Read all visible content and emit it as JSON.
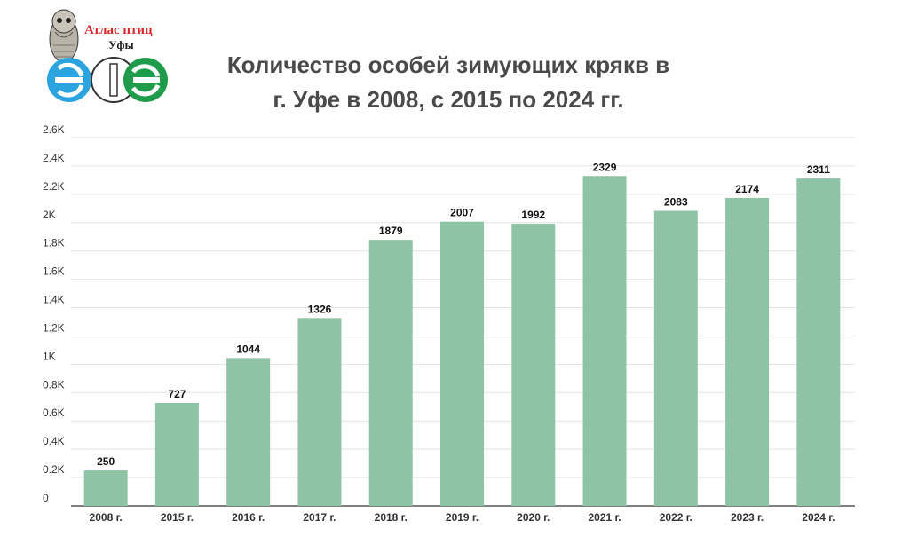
{
  "logo": {
    "title": "Атлас птиц",
    "subtitle": "Уфы"
  },
  "chart_data": {
    "type": "bar",
    "title": "Количество особей зимующих крякв в г. Уфе в 2008, с 2015 по 2024 гг.",
    "title_lines": [
      "Количество особей зимующих крякв в",
      "г. Уфе в 2008, с 2015 по 2024 гг."
    ],
    "categories": [
      "2008 г.",
      "2015 г.",
      "2016 г.",
      "2017 г.",
      "2018 г.",
      "2019 г.",
      "2020 г.",
      "2021 г.",
      "2022 г.",
      "2023 г.",
      "2024 г."
    ],
    "values": [
      250,
      727,
      1044,
      1326,
      1879,
      2007,
      1992,
      2329,
      2083,
      2174,
      2311
    ],
    "ylim": [
      0,
      2600
    ],
    "yticks": [
      0,
      200,
      400,
      600,
      800,
      1000,
      1200,
      1400,
      1600,
      1800,
      2000,
      2200,
      2400,
      2600
    ],
    "ytick_labels": [
      "0",
      "0.2K",
      "0.4K",
      "0.6K",
      "0.8K",
      "1K",
      "1.2K",
      "1.4K",
      "1.6K",
      "1.8K",
      "2K",
      "2.2K",
      "2.4K",
      "2.6K"
    ],
    "bar_color": "#8fc3a6",
    "grid": true,
    "xlabel": "",
    "ylabel": ""
  }
}
